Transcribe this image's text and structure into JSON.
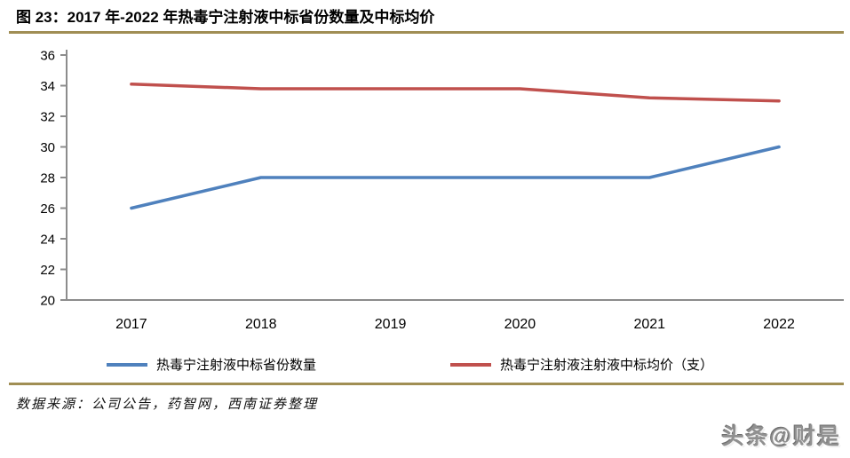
{
  "title": "图 23：2017 年-2022 年热毒宁注射液中标省份数量及中标均价",
  "source_note": "数据来源：公司公告，药智网，西南证券整理",
  "watermark": "头条@财是",
  "colors": {
    "provinces_series": "#4F81BD",
    "price_series": "#C0504D",
    "axis": "#8C8C8C",
    "divider_rule": "#A08E54",
    "tick_label": "#000000"
  },
  "chart_data": {
    "type": "line",
    "x": [
      "2017",
      "2018",
      "2019",
      "2020",
      "2021",
      "2022"
    ],
    "series": [
      {
        "name": "热毒宁注射液中标省份数量",
        "color": "#4F81BD",
        "values": [
          26,
          28,
          28,
          28,
          28,
          30
        ]
      },
      {
        "name": "热毒宁注射液注射液中标均价（支）",
        "color": "#C0504D",
        "values": [
          34.1,
          33.8,
          33.8,
          33.8,
          33.2,
          33.0
        ]
      }
    ],
    "title": "2017 年-2022 年热毒宁注射液中标省份数量及中标均价",
    "xlabel": "",
    "ylabel": "",
    "ylim": [
      20,
      36
    ],
    "ytick_step": 2,
    "grid": false,
    "legend_position": "bottom"
  }
}
